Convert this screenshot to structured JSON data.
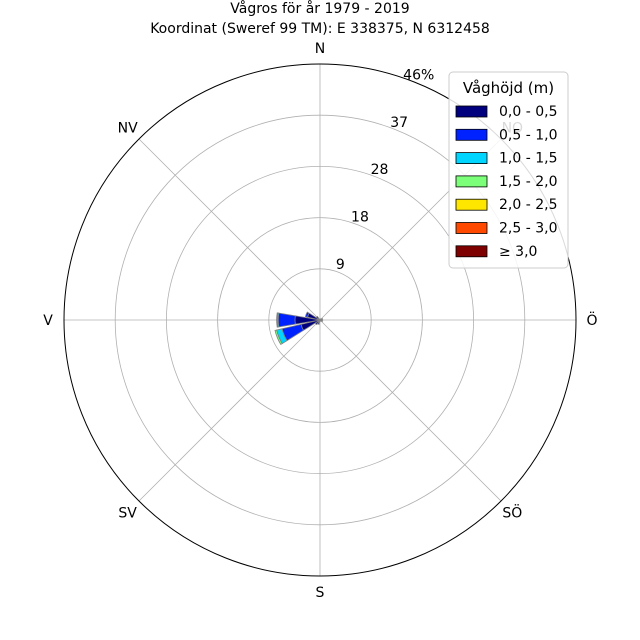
{
  "chart_data": {
    "type": "windrose",
    "title": "Vågros för år 1979 - 2019",
    "subtitle": "Koordinat (Sweref 99 TM): E 338375, N 6312458",
    "directions": [
      "N",
      "NO",
      "Ö",
      "SÖ",
      "S",
      "SV",
      "V",
      "NV"
    ],
    "radial_ticks": [
      "9",
      "18",
      "28",
      "37",
      "46%"
    ],
    "radial_tick_values": [
      9.2,
      18.4,
      27.6,
      36.8,
      46
    ],
    "rmax": 46,
    "legend_title": "Våghöjd (m)",
    "bins": [
      {
        "label": "0,0 - 0,5",
        "color": "#00007f"
      },
      {
        "label": "0,5 - 1,0",
        "color": "#0022ff"
      },
      {
        "label": "1,0 - 1,5",
        "color": "#00d5ff"
      },
      {
        "label": "1,5 - 2,0",
        "color": "#7cff79"
      },
      {
        "label": "2,0 - 2,5",
        "color": "#ffe600"
      },
      {
        "label": "2,5 - 3,0",
        "color": "#ff4800"
      },
      {
        "label": "≥ 3,0",
        "color": "#7f0000"
      }
    ],
    "sectors": [
      {
        "center_deg": 0,
        "values": [
          0,
          0,
          0,
          0,
          0,
          0,
          0
        ]
      },
      {
        "center_deg": 22.5,
        "values": [
          0,
          0,
          0,
          0,
          0,
          0,
          0
        ]
      },
      {
        "center_deg": 45,
        "values": [
          0.3,
          0,
          0,
          0,
          0,
          0,
          0
        ]
      },
      {
        "center_deg": 67.5,
        "values": [
          0.5,
          0,
          0,
          0,
          0,
          0,
          0
        ]
      },
      {
        "center_deg": 90,
        "values": [
          0.2,
          0,
          0,
          0,
          0,
          0,
          0
        ]
      },
      {
        "center_deg": 112.5,
        "values": [
          0.5,
          0,
          0,
          0,
          0,
          0,
          0
        ]
      },
      {
        "center_deg": 135,
        "values": [
          0.3,
          0,
          0,
          0,
          0,
          0,
          0
        ]
      },
      {
        "center_deg": 157.5,
        "values": [
          0.2,
          0,
          0,
          0,
          0,
          0,
          0
        ]
      },
      {
        "center_deg": 180,
        "values": [
          0.1,
          0,
          0,
          0,
          0,
          0,
          0
        ]
      },
      {
        "center_deg": 202.5,
        "values": [
          0.8,
          0,
          0,
          0,
          0,
          0,
          0
        ]
      },
      {
        "center_deg": 225,
        "values": [
          1.0,
          0,
          0,
          0,
          0,
          0,
          0
        ]
      },
      {
        "center_deg": 247.5,
        "values": [
          3.5,
          3.5,
          1.0,
          0.3,
          0,
          0,
          0
        ]
      },
      {
        "center_deg": 270,
        "values": [
          4.5,
          3.0,
          0.2,
          0.1,
          0,
          0,
          0
        ]
      },
      {
        "center_deg": 292.5,
        "values": [
          2.3,
          0.4,
          0,
          0,
          0,
          0,
          0
        ]
      },
      {
        "center_deg": 315,
        "values": [
          0.8,
          0,
          0,
          0,
          0,
          0,
          0
        ]
      },
      {
        "center_deg": 337.5,
        "values": [
          0.1,
          0,
          0,
          0,
          0,
          0,
          0
        ]
      }
    ]
  }
}
